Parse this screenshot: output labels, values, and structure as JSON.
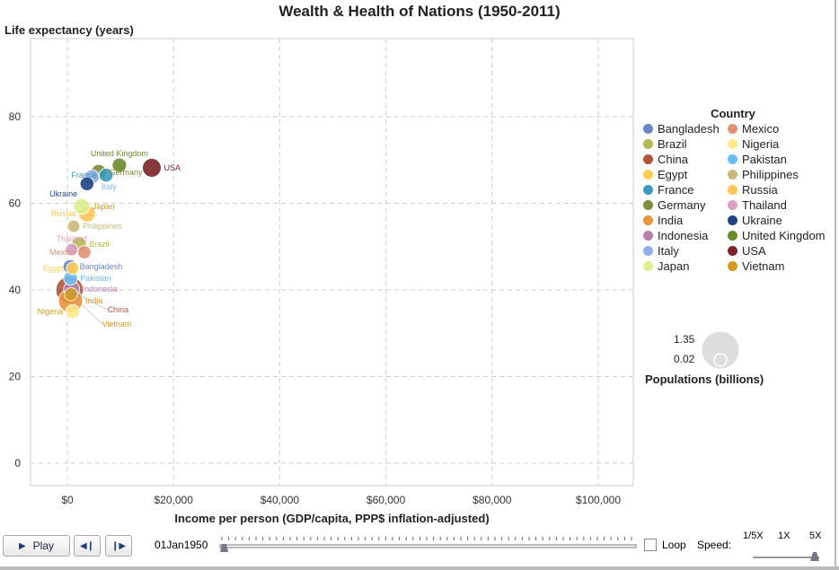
{
  "title": "Wealth & Health of Nations (1950-2011)",
  "chart_data": {
    "type": "scatter",
    "title": "Wealth & Health of Nations (1950-2011)",
    "xlabel": "Income per person (GDP/capita, PPP$ inflation-adjusted)",
    "ylabel": "Life expectancy (years)",
    "xlim": [
      -7000,
      107000
    ],
    "ylim": [
      -5,
      98
    ],
    "xticks": [
      0,
      20000,
      40000,
      60000,
      80000,
      100000
    ],
    "xtick_labels": [
      "$0",
      "$20,000",
      "$40,000",
      "$60,000",
      "$80,000",
      "$100,000"
    ],
    "yticks": [
      0,
      20,
      40,
      60,
      80
    ],
    "ytick_labels": [
      "0",
      "20",
      "40",
      "60",
      "80"
    ],
    "grid": true,
    "legend_title": "Country",
    "legend_position": "right",
    "points": [
      {
        "name": "Bangladesh",
        "x": 500,
        "y": 45.4,
        "pop": 0.04,
        "color": "#6a86c4"
      },
      {
        "name": "Brazil",
        "x": 2200,
        "y": 50.6,
        "pop": 0.05,
        "color": "#b5b84e"
      },
      {
        "name": "China",
        "x": 400,
        "y": 40,
        "pop": 0.55,
        "color": "#b0553a"
      },
      {
        "name": "Egypt",
        "x": 1000,
        "y": 45,
        "pop": 0.02,
        "color": "#ffcc55"
      },
      {
        "name": "France",
        "x": 7300,
        "y": 66.5,
        "pop": 0.04,
        "color": "#3b98be"
      },
      {
        "name": "Germany",
        "x": 5900,
        "y": 67.2,
        "pop": 0.07,
        "color": "#7e8c3c"
      },
      {
        "name": "India",
        "x": 600,
        "y": 37.5,
        "pop": 0.37,
        "color": "#e8963a"
      },
      {
        "name": "Indonesia",
        "x": 800,
        "y": 40.2,
        "pop": 0.08,
        "color": "#b580a8"
      },
      {
        "name": "Italy",
        "x": 4600,
        "y": 66.1,
        "pop": 0.05,
        "color": "#8fb1e8"
      },
      {
        "name": "Japan",
        "x": 2700,
        "y": 59.3,
        "pop": 0.08,
        "color": "#dcee8e"
      },
      {
        "name": "Mexico",
        "x": 3200,
        "y": 48.7,
        "pop": 0.03,
        "color": "#e09272"
      },
      {
        "name": "Nigeria",
        "x": 1000,
        "y": 35,
        "pop": 0.04,
        "color": "#ffe88a"
      },
      {
        "name": "Pakistan",
        "x": 600,
        "y": 42.7,
        "pop": 0.04,
        "color": "#6bbcf5"
      },
      {
        "name": "Philippines",
        "x": 1200,
        "y": 54.7,
        "pop": 0.02,
        "color": "#c9b87c"
      },
      {
        "name": "Russia",
        "x": 3700,
        "y": 57.6,
        "pop": 0.1,
        "color": "#ffc65a"
      },
      {
        "name": "Thailand",
        "x": 800,
        "y": 49.3,
        "pop": 0.02,
        "color": "#d99ec2"
      },
      {
        "name": "Ukraine",
        "x": 3700,
        "y": 64.5,
        "pop": 0.04,
        "color": "#1f4585"
      },
      {
        "name": "United Kingdom",
        "x": 9800,
        "y": 68.8,
        "pop": 0.05,
        "color": "#6a8a2e"
      },
      {
        "name": "USA",
        "x": 15900,
        "y": 68.2,
        "pop": 0.16,
        "color": "#7b2528"
      },
      {
        "name": "Vietnam",
        "x": 700,
        "y": 39,
        "pop": 0.03,
        "color": "#d49a1f"
      }
    ]
  },
  "size_legend": {
    "max": "1.35",
    "min": "0.02",
    "title": "Populations (billions)"
  },
  "controls": {
    "play": "Play",
    "date": "01Jan1950",
    "loop": "Loop",
    "speed": "Speed:",
    "speeds": [
      "1/5X",
      "1X",
      "5X"
    ],
    "progress": 0,
    "speed_value": 1
  }
}
